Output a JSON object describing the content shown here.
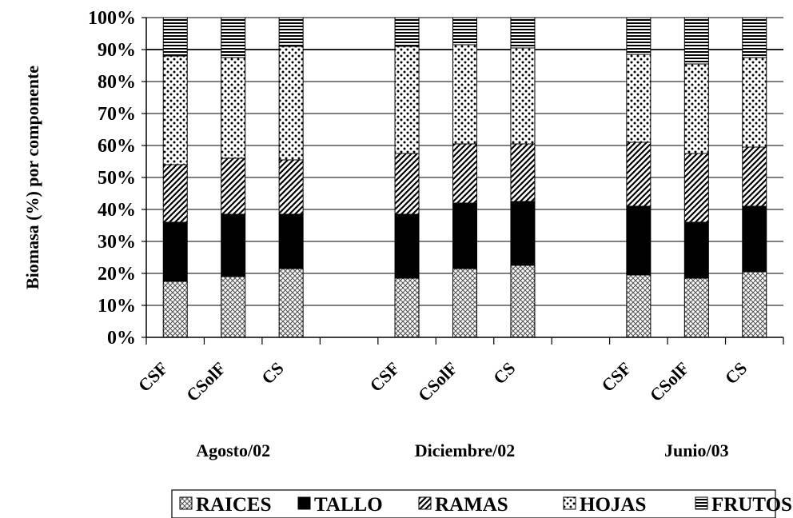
{
  "chart_data": {
    "type": "bar",
    "stacked": true,
    "percent_stacked": true,
    "title": "",
    "xlabel": "",
    "ylabel": "Biomasa (%) por componente",
    "ylim": [
      0,
      100
    ],
    "yticks": [
      "0%",
      "10%",
      "20%",
      "30%",
      "40%",
      "50%",
      "60%",
      "70%",
      "80%",
      "90%",
      "100%"
    ],
    "grid": true,
    "legend_position": "bottom",
    "groups": [
      {
        "label": "Agosto/02",
        "categories": [
          "CSF",
          "CSolF",
          "CS"
        ]
      },
      {
        "label": "Diciembre/02",
        "categories": [
          "CSF",
          "CSolF",
          "CS"
        ]
      },
      {
        "label": "Junio/03",
        "categories": [
          "CSF",
          "CSolF",
          "CS"
        ]
      }
    ],
    "categories": [
      "CSF",
      "CSolF",
      "CS",
      "CSF",
      "CSolF",
      "CS",
      "CSF",
      "CSolF",
      "CS"
    ],
    "series": [
      {
        "name": "RAICES",
        "pattern": "crosshatch",
        "values": [
          17.5,
          19,
          21.5,
          18.5,
          21.5,
          22.5,
          19.5,
          18.5,
          20.5
        ]
      },
      {
        "name": "TALLO",
        "pattern": "solid",
        "values": [
          18.5,
          19.5,
          17,
          20,
          20.5,
          20,
          21.5,
          17.5,
          20.5
        ]
      },
      {
        "name": "RAMAS",
        "pattern": "diagonal",
        "values": [
          18,
          17.5,
          17,
          19,
          18.5,
          18,
          20,
          21.5,
          18.5
        ]
      },
      {
        "name": "HOJAS",
        "pattern": "dots",
        "values": [
          34,
          31.5,
          35.5,
          33.5,
          31,
          30,
          27.5,
          28,
          28
        ]
      },
      {
        "name": "FRUTOS",
        "pattern": "horizontal",
        "values": [
          12,
          12.5,
          9,
          9,
          8.5,
          9.5,
          11.5,
          14.5,
          12.5
        ]
      }
    ]
  }
}
